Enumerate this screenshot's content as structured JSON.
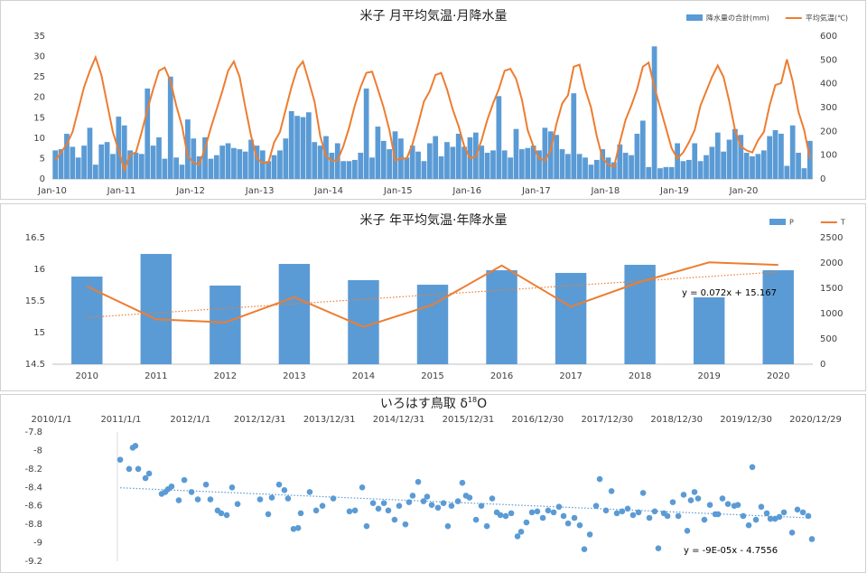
{
  "chart_data": [
    {
      "type": "combo",
      "title": "米子 月平均気温·月降水量",
      "legend": "top-right",
      "categories": [
        "Jan-10",
        null,
        null,
        null,
        null,
        null,
        null,
        null,
        null,
        null,
        null,
        null,
        "Jan-11",
        null,
        null,
        null,
        null,
        null,
        null,
        null,
        null,
        null,
        null,
        null,
        "Jan-12",
        null,
        null,
        null,
        null,
        null,
        null,
        null,
        null,
        null,
        null,
        null,
        "Jan-13",
        null,
        null,
        null,
        null,
        null,
        null,
        null,
        null,
        null,
        null,
        null,
        "Jan-14",
        null,
        null,
        null,
        null,
        null,
        null,
        null,
        null,
        null,
        null,
        null,
        "Jan-15",
        null,
        null,
        null,
        null,
        null,
        null,
        null,
        null,
        null,
        null,
        null,
        "Jan-16",
        null,
        null,
        null,
        null,
        null,
        null,
        null,
        null,
        null,
        null,
        null,
        "Jan-17",
        null,
        null,
        null,
        null,
        null,
        null,
        null,
        null,
        null,
        null,
        null,
        "Jan-18",
        null,
        null,
        null,
        null,
        null,
        null,
        null,
        null,
        null,
        null,
        null,
        "Jan-19",
        null,
        null,
        null,
        null,
        null,
        null,
        null,
        null,
        null,
        null,
        null,
        "Jan-20",
        null,
        null,
        null,
        null,
        null,
        null,
        null,
        null,
        null,
        null,
        null
      ],
      "series": [
        {
          "name": "降水量の合計(mm)",
          "type": "bar",
          "axis": "y2",
          "color": "#5b9bd5",
          "values": [
            120,
            125,
            190,
            135,
            90,
            140,
            215,
            60,
            145,
            155,
            105,
            262,
            225,
            120,
            110,
            105,
            380,
            140,
            175,
            85,
            430,
            90,
            60,
            250,
            170,
            95,
            175,
            85,
            100,
            140,
            150,
            130,
            125,
            115,
            165,
            140,
            120,
            75,
            100,
            120,
            170,
            285,
            265,
            260,
            280,
            155,
            140,
            180,
            110,
            150,
            75,
            75,
            80,
            110,
            380,
            90,
            220,
            160,
            125,
            200,
            170,
            90,
            140,
            115,
            75,
            150,
            180,
            95,
            155,
            135,
            190,
            135,
            175,
            195,
            140,
            110,
            120,
            348,
            120,
            90,
            210,
            125,
            130,
            140,
            120,
            215,
            200,
            185,
            125,
            105,
            360,
            105,
            90,
            60,
            80,
            125,
            90,
            70,
            145,
            110,
            100,
            190,
            245,
            50,
            557,
            45,
            50,
            50,
            150,
            75,
            80,
            150,
            75,
            100,
            135,
            195,
            115,
            165,
            210,
            185,
            110,
            95,
            105,
            120,
            180,
            205,
            190,
            55,
            225,
            110,
            45,
            160
          ]
        },
        {
          "name": "平均気温(℃)",
          "type": "line",
          "color": "#ed7d31",
          "values": [
            4.6,
            6.5,
            8.5,
            11.5,
            17,
            22.5,
            26.5,
            29.8,
            25.5,
            18.5,
            11.5,
            7,
            2.2,
            6,
            6.5,
            11.5,
            17,
            22,
            26.5,
            27.3,
            24,
            18,
            13,
            5.5,
            4,
            3.5,
            7.5,
            12.5,
            17,
            21.5,
            26.5,
            28.8,
            25,
            17.5,
            10.5,
            5,
            4,
            4,
            9,
            11.5,
            17,
            22.5,
            27,
            28.8,
            24,
            19,
            10.5,
            5.5,
            4.5,
            4.5,
            8,
            12.5,
            18,
            22.5,
            26,
            26.3,
            22,
            17.5,
            12,
            4.5,
            5,
            5,
            8.5,
            13.5,
            19,
            21.5,
            25.5,
            26,
            22,
            17,
            13,
            8,
            5,
            5.5,
            9.5,
            14.5,
            18.5,
            22,
            26.5,
            27,
            24.5,
            19.5,
            12,
            8,
            5,
            4.5,
            7,
            13.5,
            18.5,
            20.5,
            27.5,
            28,
            22,
            17.5,
            10.5,
            5,
            3.5,
            3,
            9,
            14.5,
            18,
            22,
            27.5,
            28.5,
            22.5,
            17.5,
            12.5,
            7.5,
            5,
            6.5,
            9,
            12,
            18,
            21.5,
            25,
            27.8,
            25,
            19,
            12,
            8,
            7,
            6.5,
            9.5,
            11.5,
            18,
            23,
            23.5,
            29.3,
            24,
            16.5,
            12,
            5
          ]
        }
      ],
      "ylim": [
        0,
        35
      ],
      "yticks": [
        0,
        5,
        10,
        15,
        20,
        25,
        30,
        35
      ],
      "y2lim": [
        0,
        600
      ],
      "y2ticks": [
        0,
        100,
        200,
        300,
        400,
        500,
        600
      ]
    },
    {
      "type": "combo",
      "title": "米子 年平均気温·年降水量",
      "legend": "top-right",
      "categories": [
        "2010",
        "2011",
        "2012",
        "2013",
        "2014",
        "2015",
        "2016",
        "2017",
        "2018",
        "2019",
        "2020"
      ],
      "series": [
        {
          "name": "P",
          "type": "bar",
          "axis": "y2",
          "color": "#5b9bd5",
          "values": [
            1732,
            2179,
            1554,
            1982,
            1661,
            1571,
            1857,
            1804,
            1964,
            1321,
            1857
          ]
        },
        {
          "name": "T",
          "type": "line",
          "color": "#ed7d31",
          "values": [
            15.73,
            15.21,
            15.16,
            15.56,
            15.09,
            15.44,
            16.06,
            15.41,
            15.8,
            16.11,
            16.07
          ],
          "trendline": {
            "label": "y = 0.072x + 15.167",
            "slope": 0.072,
            "intercept": 15.167
          }
        }
      ],
      "ylim": [
        14.5,
        16.5
      ],
      "yticks": [
        14.5,
        15,
        15.5,
        16,
        16.5
      ],
      "y2lim": [
        0,
        2500
      ],
      "y2ticks": [
        0,
        500,
        1000,
        1500,
        2000,
        2500
      ]
    },
    {
      "type": "scatter",
      "title": {
        "text": "いろはす鳥取 δ",
        "sup": "18",
        "tail": "O"
      },
      "color": "#5b9bd5",
      "x": [
        40540,
        40587,
        40606,
        40620,
        40635,
        40673,
        40692,
        40758,
        40777,
        40791,
        40810,
        40848,
        40877,
        40915,
        40948,
        40991,
        41014,
        41052,
        41071,
        41100,
        41128,
        41157,
        41275,
        41318,
        41337,
        41375,
        41403,
        41422,
        41451,
        41475,
        41489,
        41536,
        41570,
        41603,
        41660,
        41745,
        41774,
        41812,
        41835,
        41869,
        41897,
        41926,
        41949,
        41982,
        42006,
        42039,
        42058,
        42077,
        42106,
        42134,
        42153,
        42177,
        42210,
        42239,
        42262,
        42281,
        42315,
        42338,
        42357,
        42376,
        42410,
        42438,
        42467,
        42495,
        42519,
        42538,
        42566,
        42595,
        42628,
        42647,
        42675,
        42704,
        42732,
        42761,
        42789,
        42818,
        42846,
        42870,
        42894,
        42927,
        42955,
        42979,
        43008,
        43041,
        43060,
        43093,
        43122,
        43150,
        43178,
        43207,
        43235,
        43264,
        43288,
        43321,
        43349,
        43368,
        43397,
        43416,
        43444,
        43473,
        43501,
        43520,
        43539,
        43558,
        43577,
        43610,
        43639,
        43667,
        43682,
        43705,
        43734,
        43767,
        43786,
        43814,
        43843,
        43862,
        43881,
        43909,
        43938,
        43957,
        43981,
        44004,
        44028,
        44071,
        44099,
        44128,
        44156,
        44175
      ],
      "values": [
        -8.1,
        -8.2,
        -7.97,
        -7.95,
        -8.2,
        -8.3,
        -8.25,
        -8.47,
        -8.45,
        -8.42,
        -8.39,
        -8.54,
        -8.32,
        -8.45,
        -8.53,
        -8.37,
        -8.53,
        -8.65,
        -8.68,
        -8.7,
        -8.4,
        -8.58,
        -8.53,
        -8.69,
        -8.51,
        -8.37,
        -8.43,
        -8.52,
        -8.85,
        -8.84,
        -8.68,
        -8.45,
        -8.65,
        -8.6,
        -8.52,
        -8.66,
        -8.65,
        -8.4,
        -8.82,
        -8.57,
        -8.63,
        -8.57,
        -8.65,
        -8.75,
        -8.6,
        -8.8,
        -8.56,
        -8.49,
        -8.34,
        -8.55,
        -8.5,
        -8.59,
        -8.62,
        -8.57,
        -8.82,
        -8.6,
        -8.55,
        -8.35,
        -8.49,
        -8.51,
        -8.75,
        -8.6,
        -8.82,
        -8.52,
        -8.67,
        -8.7,
        -8.71,
        -8.68,
        -8.93,
        -8.88,
        -8.78,
        -8.67,
        -8.66,
        -8.73,
        -8.65,
        -8.67,
        -8.61,
        -8.71,
        -8.79,
        -8.73,
        -8.81,
        -9.07,
        -8.91,
        -8.6,
        -8.31,
        -8.65,
        -8.44,
        -8.68,
        -8.66,
        -8.63,
        -8.7,
        -8.67,
        -8.46,
        -8.73,
        -8.66,
        -9.06,
        -8.68,
        -8.71,
        -8.56,
        -8.71,
        -8.48,
        -8.87,
        -8.54,
        -8.45,
        -8.52,
        -8.75,
        -8.59,
        -8.69,
        -8.69,
        -8.52,
        -8.58,
        -8.6,
        -8.59,
        -8.71,
        -8.81,
        -8.18,
        -8.75,
        -8.61,
        -8.68,
        -8.74,
        -8.74,
        -8.72,
        -8.67,
        -8.89,
        -8.64,
        -8.67,
        -8.71,
        -8.96
      ],
      "xlim": [
        40179,
        44194
      ],
      "xticks": [
        {
          "value": 40179,
          "label": "2010/1/1"
        },
        {
          "value": 40544,
          "label": "2011/1/1"
        },
        {
          "value": 40909,
          "label": "2012/1/1"
        },
        {
          "value": 41274,
          "label": "2012/12/31"
        },
        {
          "value": 41639,
          "label": "2013/12/31"
        },
        {
          "value": 42004,
          "label": "2014/12/31"
        },
        {
          "value": 42369,
          "label": "2015/12/31"
        },
        {
          "value": 42734,
          "label": "2016/12/30"
        },
        {
          "value": 43099,
          "label": "2017/12/30"
        },
        {
          "value": 43464,
          "label": "2018/12/30"
        },
        {
          "value": 43829,
          "label": "2019/12/30"
        },
        {
          "value": 44194,
          "label": "2020/12/29"
        }
      ],
      "ylim": [
        -9.2,
        -7.8
      ],
      "yticks": [
        -7.8,
        -8,
        -8.2,
        -8.4,
        -8.6,
        -8.8,
        -9,
        -9.2
      ],
      "trendline": {
        "label": "y = -9E-05x - 4.7556",
        "slope": -9e-05,
        "intercept": -4.7556
      }
    }
  ]
}
